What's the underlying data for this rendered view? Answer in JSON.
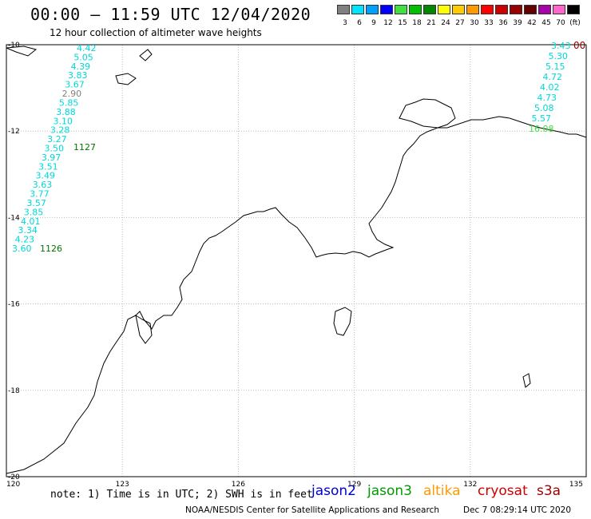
{
  "header": {
    "title": "00:00 – 11:59 UTC 12/04/2020",
    "subtitle": "12 hour collection of altimeter wave heights"
  },
  "legend": {
    "unit": "(ft)",
    "entries": [
      {
        "label": "3",
        "color": "#808080"
      },
      {
        "label": "6",
        "color": "#00e5ff"
      },
      {
        "label": "9",
        "color": "#00a0ff"
      },
      {
        "label": "12",
        "color": "#0000ff"
      },
      {
        "label": "15",
        "color": "#40e040"
      },
      {
        "label": "18",
        "color": "#00c000"
      },
      {
        "label": "21",
        "color": "#008800"
      },
      {
        "label": "24",
        "color": "#ffff00"
      },
      {
        "label": "27",
        "color": "#ffcc00"
      },
      {
        "label": "30",
        "color": "#ff9900"
      },
      {
        "label": "33",
        "color": "#ff0000"
      },
      {
        "label": "36",
        "color": "#cc0000"
      },
      {
        "label": "39",
        "color": "#990000"
      },
      {
        "label": "42",
        "color": "#660000"
      },
      {
        "label": "45",
        "color": "#aa00aa"
      },
      {
        "label": "70",
        "color": "#ff66cc"
      },
      {
        "label": "",
        "color": "#000000"
      }
    ]
  },
  "map": {
    "lon_range": [
      120,
      135
    ],
    "lat_range": [
      -20,
      -10
    ],
    "x_ticks": [
      "120",
      "123",
      "126",
      "129",
      "132",
      "135"
    ],
    "y_ticks": [
      "-10",
      "-12",
      "-14",
      "-16",
      "-18",
      "-20"
    ],
    "tracks": [
      {
        "id": "1127",
        "color": "#00d8d8",
        "id_color": "#007700",
        "values": [
          "4.42",
          "5.05",
          "4.39",
          "3.83",
          "3.67",
          "2.90",
          "5.85",
          "3.88",
          "3.10",
          "3.28",
          "3.27",
          "3.50",
          "3.97",
          "3.51",
          "3.49",
          "3.63",
          "3.77",
          "3.57",
          "3.85",
          "4.01",
          "3.34",
          "4.23",
          "3.60"
        ],
        "value_colors": [
          "#00d8d8",
          "#00d8d8",
          "#00d8d8",
          "#00d8d8",
          "#00d8d8",
          "#808080",
          "#00d8d8",
          "#00d8d8",
          "#00d8d8",
          "#00d8d8",
          "#00d8d8",
          "#00d8d8",
          "#00d8d8",
          "#00d8d8",
          "#00d8d8",
          "#00d8d8",
          "#00d8d8",
          "#00d8d8",
          "#00d8d8",
          "#00d8d8",
          "#00d8d8",
          "#00d8d8",
          "#00d8d8"
        ]
      },
      {
        "id": "1126",
        "color": "#00d8d8",
        "id_color": "#007700"
      },
      {
        "id": "00",
        "color": "#00d8d8",
        "id_color": "#990000",
        "values": [
          "3.43",
          "5.30",
          "5.15",
          "4.72",
          "4.02",
          "4.73",
          "5.08",
          "5.57",
          "16.08"
        ],
        "value_colors": [
          "#00d8d8",
          "#00d8d8",
          "#00d8d8",
          "#00d8d8",
          "#00d8d8",
          "#00d8d8",
          "#00d8d8",
          "#00d8d8",
          "#40e040"
        ]
      }
    ]
  },
  "footer": {
    "note": "note: 1) Time is in UTC; 2) SWH is in feet",
    "satellites": [
      {
        "name": "jason2",
        "color": "#0000cc"
      },
      {
        "name": "jason3",
        "color": "#009900"
      },
      {
        "name": "altika",
        "color": "#ff9900"
      },
      {
        "name": "cryosat",
        "color": "#cc0000"
      },
      {
        "name": "s3a",
        "color": "#990000"
      }
    ],
    "credit": "NOAA/NESDIS Center for Satellite Applications and Research",
    "date": "Dec  7 08:29:14 UTC 2020"
  }
}
